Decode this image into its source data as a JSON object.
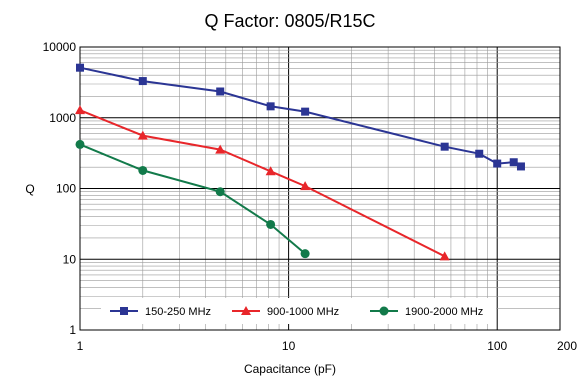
{
  "chart_data": {
    "type": "line",
    "title": "Q Factor: 0805/R15C",
    "xlabel": "Capacitance (pF)",
    "ylabel": "Q",
    "x_scale": "log",
    "y_scale": "log",
    "xlim": [
      1,
      200
    ],
    "ylim": [
      1,
      10000
    ],
    "x_ticks": [
      {
        "value": 1,
        "label": "1"
      },
      {
        "value": 10,
        "label": "10"
      },
      {
        "value": 100,
        "label": "100"
      },
      {
        "value": 200,
        "label": "200"
      }
    ],
    "y_ticks": [
      {
        "value": 1,
        "label": "1"
      },
      {
        "value": 10,
        "label": "10"
      },
      {
        "value": 100,
        "label": "100"
      },
      {
        "value": 1000,
        "label": "1000"
      },
      {
        "value": 10000,
        "label": "10000"
      }
    ],
    "grid": true,
    "legend_position": "bottom-inside",
    "series": [
      {
        "name": "150-250 MHz",
        "color": "#2b3594",
        "marker": "square",
        "points": [
          [
            1,
            5100
          ],
          [
            2,
            3300
          ],
          [
            4.7,
            2350
          ],
          [
            8.2,
            1450
          ],
          [
            12,
            1220
          ],
          [
            56,
            390
          ],
          [
            82,
            310
          ],
          [
            100,
            225
          ],
          [
            120,
            235
          ],
          [
            130,
            205
          ]
        ]
      },
      {
        "name": "900-1000 MHz",
        "color": "#e8262a",
        "marker": "triangle",
        "points": [
          [
            1,
            1280
          ],
          [
            2,
            560
          ],
          [
            4.7,
            355
          ],
          [
            8.2,
            175
          ],
          [
            12,
            108
          ],
          [
            56,
            11
          ]
        ]
      },
      {
        "name": "1900-2000 MHz",
        "color": "#127a4a",
        "marker": "circle",
        "points": [
          [
            1,
            420
          ],
          [
            2,
            180
          ],
          [
            4.7,
            90
          ],
          [
            8.2,
            31
          ],
          [
            12,
            12
          ]
        ]
      }
    ]
  }
}
